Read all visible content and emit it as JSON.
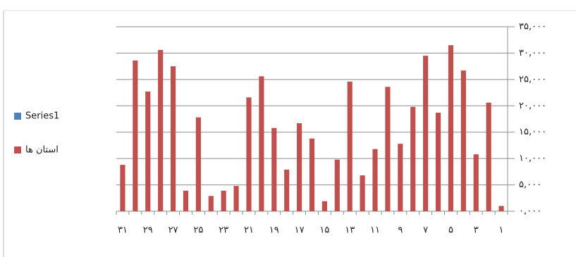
{
  "chart_data": {
    "type": "bar",
    "categories": [
      "۱",
      null,
      "۳",
      null,
      "۵",
      null,
      "۷",
      null,
      "۹",
      null,
      "۱۱",
      null,
      "۱۳",
      null,
      "۱۵",
      null,
      "۱۷",
      null,
      "۱۹",
      null,
      "۲۱",
      null,
      "۲۳",
      null,
      "۲۵",
      null,
      "۲۷",
      null,
      "۲۹",
      null,
      "۳۱"
    ],
    "series": [
      {
        "name": "Series1",
        "color": "#4f81bd",
        "values": [
          null,
          null,
          null,
          null,
          null,
          null,
          null,
          null,
          null,
          null,
          null,
          null,
          null,
          null,
          null,
          null,
          null,
          null,
          null,
          null,
          null,
          null,
          null,
          null,
          null,
          null,
          null,
          null,
          null,
          null,
          null
        ]
      },
      {
        "name": "استان ها",
        "color": "#c0504d",
        "values": [
          1000,
          20600,
          10800,
          26700,
          31500,
          18700,
          29500,
          19800,
          12800,
          23600,
          11800,
          6800,
          24600,
          9800,
          1900,
          13800,
          16700,
          7900,
          15800,
          25600,
          21600,
          4800,
          3900,
          2900,
          17800,
          3900,
          27500,
          30600,
          22700,
          28600,
          8800
        ]
      }
    ],
    "ylim": [
      0,
      35000
    ],
    "yticks": [
      {
        "value": 0,
        "label": "٠,٠٠٠"
      },
      {
        "value": 5000,
        "label": "۵,٠٠٠"
      },
      {
        "value": 10000,
        "label": "١٠,٠٠٠"
      },
      {
        "value": 15000,
        "label": "١۵,٠٠٠"
      },
      {
        "value": 20000,
        "label": "٢٠,٠٠٠"
      },
      {
        "value": 25000,
        "label": "٢۵,٠٠٠"
      },
      {
        "value": 30000,
        "label": "٣٠,٠٠٠"
      },
      {
        "value": 35000,
        "label": "٣۵,٠٠٠"
      }
    ],
    "grid": true,
    "legend": "left",
    "reversed_x": true
  }
}
